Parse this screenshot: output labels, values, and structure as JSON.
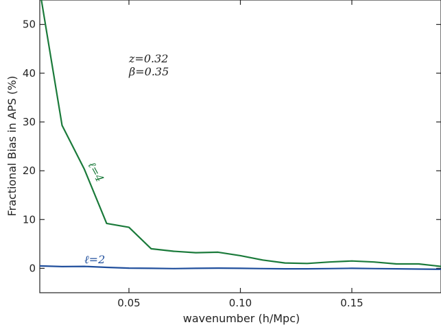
{
  "chart_data": {
    "type": "line",
    "title": "",
    "xlabel": "wavenumber (h/Mpc)",
    "ylabel": "Fractional Bias in APS (%)",
    "xlim": [
      0.01,
      0.19
    ],
    "ylim": [
      -5,
      55
    ],
    "xticks": [
      0.05,
      0.1,
      0.15
    ],
    "xtick_labels": [
      "0.05",
      "0.10",
      "0.15"
    ],
    "yticks": [
      0,
      10,
      20,
      30,
      40,
      50
    ],
    "ytick_labels": [
      "0",
      "10",
      "20",
      "30",
      "40",
      "50"
    ],
    "grid": false,
    "annotations": [
      "z=0.32",
      "β=0.35"
    ],
    "series": [
      {
        "name": "ℓ=4",
        "color": "#1a7a3a",
        "x": [
          0.01,
          0.02,
          0.03,
          0.04,
          0.05,
          0.06,
          0.07,
          0.08,
          0.09,
          0.1,
          0.11,
          0.12,
          0.13,
          0.14,
          0.15,
          0.16,
          0.17,
          0.18,
          0.19
        ],
        "y": [
          57,
          29.3,
          20.3,
          9.2,
          8.4,
          4.0,
          3.5,
          3.2,
          3.3,
          2.6,
          1.7,
          1.1,
          1.0,
          1.3,
          1.5,
          1.3,
          0.9,
          0.9,
          0.4
        ]
      },
      {
        "name": "ℓ=2",
        "color": "#1f4e9c",
        "x": [
          0.01,
          0.02,
          0.03,
          0.04,
          0.05,
          0.06,
          0.07,
          0.08,
          0.09,
          0.1,
          0.11,
          0.12,
          0.13,
          0.14,
          0.15,
          0.16,
          0.17,
          0.18,
          0.19
        ],
        "y": [
          0.5,
          0.35,
          0.4,
          0.2,
          0.05,
          0.0,
          -0.05,
          0.0,
          0.05,
          0.0,
          -0.05,
          -0.1,
          -0.1,
          -0.05,
          0.0,
          -0.05,
          -0.1,
          -0.15,
          -0.2
        ]
      }
    ]
  }
}
